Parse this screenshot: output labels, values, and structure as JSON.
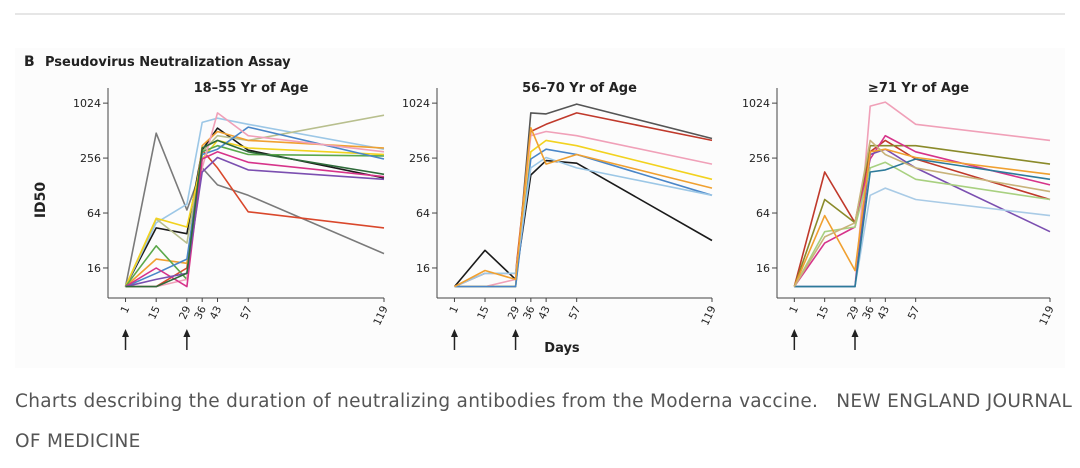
{
  "figure": {
    "label": "B",
    "heading": "Pseudovirus Neutralization Assay",
    "y_label": "ID50",
    "x_label": "Days"
  },
  "chart_data": [
    {
      "type": "line",
      "title": "18–55 Yr of Age",
      "log_scale": true,
      "x": [
        1,
        15,
        29,
        36,
        43,
        57,
        119
      ],
      "xlim": [
        -7,
        119
      ],
      "xticks": [
        1,
        15,
        29,
        36,
        43,
        57,
        119
      ],
      "ylim": [
        7.5,
        1500
      ],
      "yticks": [
        16,
        64,
        256,
        1024
      ],
      "series": [
        {
          "color": "#7a7a7a",
          "values": [
            10,
            480,
            69,
            200,
            130,
            100,
            23
          ]
        },
        {
          "color": "#1a1a1a",
          "values": [
            10,
            44,
            38,
            313,
            545,
            313,
            155
          ]
        },
        {
          "color": "#d9472b",
          "values": [
            10,
            10,
            16,
            313,
            200,
            66,
            44
          ]
        },
        {
          "color": "#9cc7e6",
          "values": [
            10,
            50,
            80,
            630,
            700,
            600,
            320
          ]
        },
        {
          "color": "#b8bf8e",
          "values": [
            10,
            55,
            30,
            300,
            450,
            400,
            756
          ]
        },
        {
          "color": "#f0a030",
          "values": [
            10,
            20,
            18,
            350,
            500,
            400,
            330
          ]
        },
        {
          "color": "#f2d21f",
          "values": [
            10,
            56,
            45,
            250,
            400,
            330,
            280
          ]
        },
        {
          "color": "#5aa84a",
          "values": [
            10,
            28,
            12,
            300,
            350,
            280,
            270
          ]
        },
        {
          "color": "#4a86c8",
          "values": [
            10,
            14,
            20,
            280,
            320,
            560,
            250
          ]
        },
        {
          "color": "#f0a0b8",
          "values": [
            10,
            10,
            12,
            200,
            800,
            450,
            300
          ]
        },
        {
          "color": "#d6338a",
          "values": [
            10,
            16,
            10,
            250,
            300,
            230,
            160
          ]
        },
        {
          "color": "#7b4fb0",
          "values": [
            10,
            12,
            14,
            180,
            260,
            190,
            150
          ]
        },
        {
          "color": "#2f6b3a",
          "values": [
            10,
            10,
            14,
            330,
            400,
            300,
            170
          ]
        }
      ]
    },
    {
      "type": "line",
      "title": "56–70 Yr of Age",
      "log_scale": true,
      "x": [
        1,
        15,
        29,
        36,
        43,
        57,
        119
      ],
      "xlim": [
        -7,
        119
      ],
      "xticks": [
        1,
        15,
        29,
        36,
        43,
        57,
        119
      ],
      "ylim": [
        7.5,
        1500
      ],
      "yticks": [
        16,
        64,
        256,
        1024
      ],
      "series": [
        {
          "color": "#1a1a1a",
          "values": [
            10,
            25,
            12,
            167,
            240,
            225,
            32
          ]
        },
        {
          "color": "#555555",
          "values": [
            10,
            10,
            10,
            800,
            780,
            1000,
            420
          ]
        },
        {
          "color": "#c0392b",
          "values": [
            10,
            14,
            14,
            500,
            600,
            800,
            400
          ]
        },
        {
          "color": "#f0a0b8",
          "values": [
            10,
            10,
            12,
            450,
            500,
            450,
            220
          ]
        },
        {
          "color": "#f2d21f",
          "values": [
            10,
            10,
            10,
            300,
            400,
            350,
            150
          ]
        },
        {
          "color": "#4a86c8",
          "values": [
            10,
            10,
            10,
            250,
            320,
            280,
            100
          ]
        },
        {
          "color": "#9cc7e6",
          "values": [
            10,
            14,
            14,
            200,
            260,
            200,
            100
          ]
        },
        {
          "color": "#f0a030",
          "values": [
            10,
            15,
            12,
            550,
            220,
            280,
            120
          ]
        }
      ]
    },
    {
      "type": "line",
      "title": "≥71 Yr of Age",
      "log_scale": true,
      "x": [
        1,
        15,
        29,
        36,
        43,
        57,
        119
      ],
      "xlim": [
        -7,
        119
      ],
      "xticks": [
        1,
        15,
        29,
        36,
        43,
        57,
        119
      ],
      "ylim": [
        7.5,
        1500
      ],
      "yticks": [
        16,
        64,
        256,
        1024
      ],
      "series": [
        {
          "color": "#f0a0b8",
          "values": [
            10,
            10,
            10,
            950,
            1050,
            600,
            400
          ]
        },
        {
          "color": "#c0392b",
          "values": [
            10,
            180,
            50,
            300,
            400,
            250,
            90
          ]
        },
        {
          "color": "#8a8a2a",
          "values": [
            10,
            90,
            50,
            350,
            350,
            350,
            220
          ]
        },
        {
          "color": "#d6338a",
          "values": [
            10,
            30,
            45,
            250,
            450,
            300,
            130
          ]
        },
        {
          "color": "#7b4fb0",
          "values": [
            10,
            10,
            10,
            280,
            320,
            200,
            40
          ]
        },
        {
          "color": "#a8d080",
          "values": [
            10,
            40,
            45,
            200,
            230,
            150,
            90
          ]
        },
        {
          "color": "#a9cbe6",
          "values": [
            10,
            10,
            10,
            100,
            120,
            90,
            60
          ]
        },
        {
          "color": "#2d7a9a",
          "values": [
            10,
            10,
            10,
            180,
            190,
            250,
            150
          ]
        },
        {
          "color": "#f0a030",
          "values": [
            10,
            60,
            15,
            300,
            320,
            260,
            170
          ]
        },
        {
          "color": "#c8b37a",
          "values": [
            10,
            35,
            50,
            400,
            280,
            200,
            110
          ]
        }
      ]
    }
  ],
  "caption": {
    "text": "Charts describing the duration of neutralizing antibodies from the Moderna vaccine.",
    "credit": "NEW ENGLAND JOURNAL OF MEDICINE"
  }
}
